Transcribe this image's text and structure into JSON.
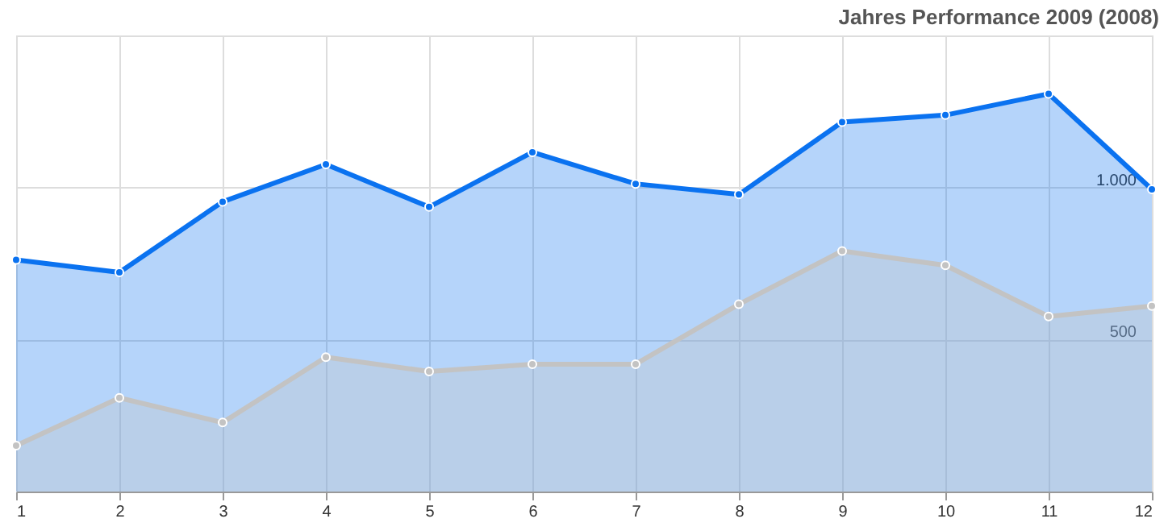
{
  "chart_data": {
    "type": "area",
    "title": "Jahres Performance 2009 (2008)",
    "x": [
      1,
      2,
      3,
      4,
      5,
      6,
      7,
      8,
      9,
      10,
      11,
      12
    ],
    "series": [
      {
        "color": "#0a72f0",
        "values": [
          762,
          721,
          953,
          1076,
          936,
          1116,
          1012,
          977,
          1215,
          1238,
          1308,
          994
        ]
      },
      {
        "color": "#c3c3c3",
        "values": [
          151,
          308,
          227,
          442,
          395,
          419,
          419,
          616,
          791,
          744,
          576,
          610
        ]
      }
    ],
    "xlim": [
      1,
      12
    ],
    "xticks": [
      1,
      2,
      3,
      4,
      5,
      6,
      7,
      8,
      9,
      10,
      11,
      12
    ],
    "ylim": [
      0,
      1500
    ],
    "yticks": [
      {
        "value": 0,
        "label": null
      },
      500,
      {
        "value": 1000,
        "label": "1.000"
      },
      {
        "value": 1500,
        "label": null
      }
    ],
    "grid": true,
    "marker": "circle",
    "line_style": "solid"
  }
}
